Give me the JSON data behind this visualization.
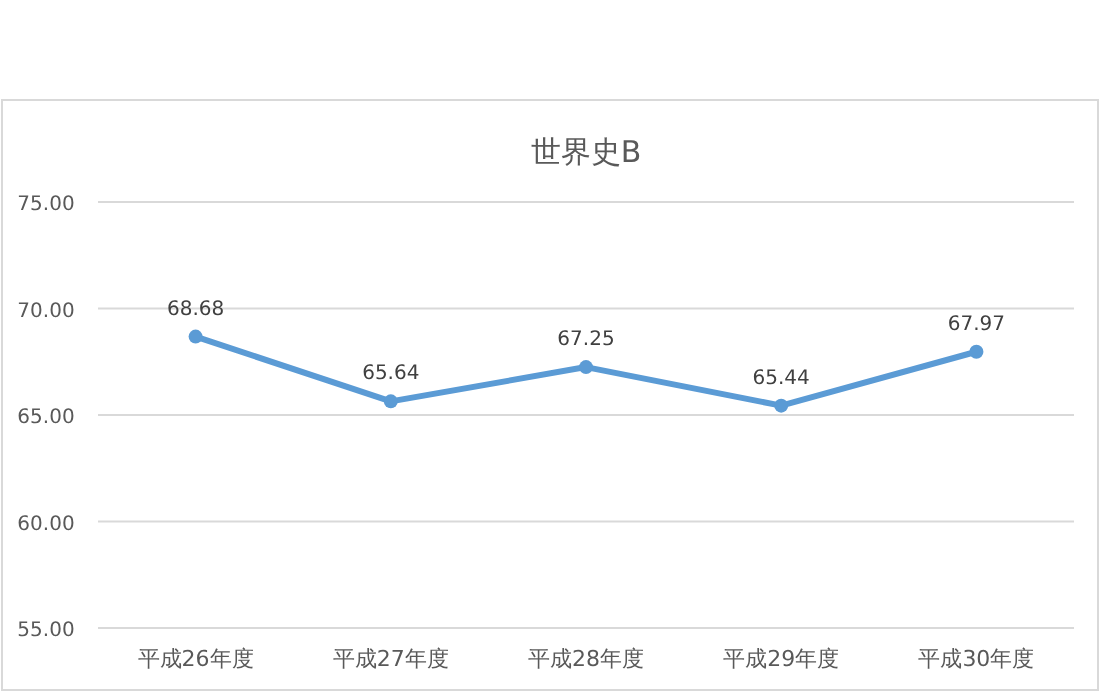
{
  "chart_data": {
    "type": "line",
    "title": "世界史B",
    "categories": [
      "平成26年度",
      "平成27年度",
      "平成28年度",
      "平成29年度",
      "平成30年度"
    ],
    "values": [
      68.68,
      65.64,
      67.25,
      65.44,
      67.97
    ],
    "color": "#5b9bd5",
    "marker": "circle",
    "data_labels": true,
    "grid": "y",
    "ylim": [
      55,
      75
    ],
    "yticks": [
      {
        "value": 55,
        "label": "55.00"
      },
      {
        "value": 60,
        "label": "60.00"
      },
      {
        "value": 65,
        "label": "65.00"
      },
      {
        "value": 70,
        "label": "70.00"
      },
      {
        "value": 75,
        "label": "75.00"
      }
    ]
  }
}
